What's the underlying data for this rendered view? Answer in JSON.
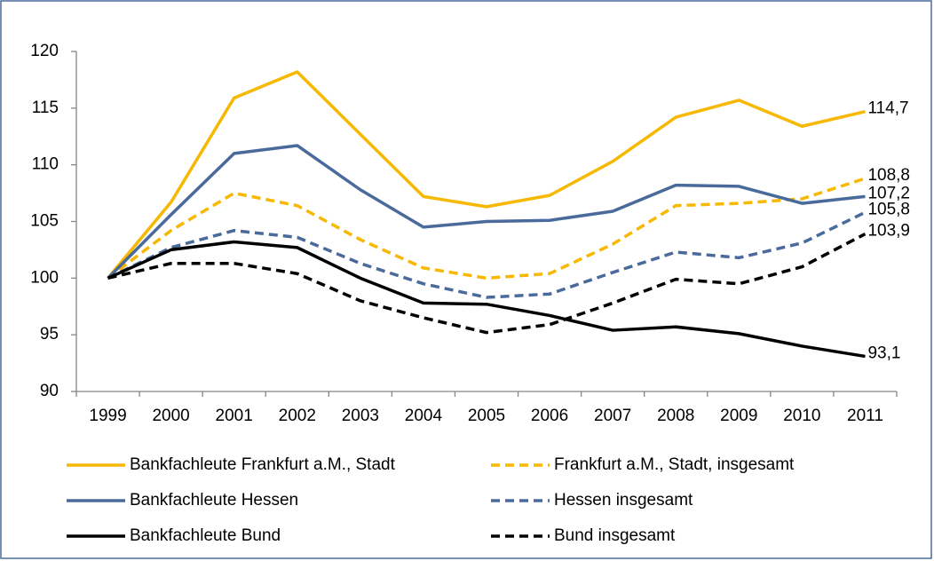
{
  "chart_data": {
    "type": "line",
    "categories": [
      "1999",
      "2000",
      "2001",
      "2002",
      "2003",
      "2004",
      "2005",
      "2006",
      "2007",
      "2008",
      "2009",
      "2010",
      "2011"
    ],
    "ylim": [
      90,
      120
    ],
    "yticks": [
      90,
      95,
      100,
      105,
      110,
      115,
      120
    ],
    "grid": false,
    "series": [
      {
        "name": "Bankfachleute Frankfurt a.M., Stadt",
        "color": "#F6B800",
        "dash": "solid",
        "values": [
          100,
          106.7,
          115.9,
          118.2,
          112.7,
          107.2,
          106.3,
          107.3,
          110.3,
          114.2,
          115.7,
          113.4,
          114.7
        ],
        "value_labels": [
          null,
          null,
          null,
          null,
          null,
          null,
          null,
          null,
          null,
          null,
          null,
          null,
          "114,7"
        ]
      },
      {
        "name": "Frankfurt a.M., Stadt, insgesamt",
        "color": "#F6B800",
        "dash": "dashed",
        "values": [
          100,
          104.2,
          107.5,
          106.4,
          103.4,
          100.9,
          100.0,
          100.4,
          103.0,
          106.4,
          106.6,
          107.0,
          108.8
        ],
        "value_labels": [
          null,
          null,
          null,
          null,
          null,
          null,
          null,
          null,
          null,
          null,
          null,
          null,
          "108,8"
        ]
      },
      {
        "name": "Bankfachleute Hessen",
        "color": "#4A6A9C",
        "dash": "solid",
        "values": [
          100,
          105.6,
          111.0,
          111.7,
          107.8,
          104.5,
          105.0,
          105.1,
          105.9,
          108.2,
          108.1,
          106.6,
          107.2
        ],
        "value_labels": [
          null,
          null,
          null,
          null,
          null,
          null,
          null,
          null,
          null,
          null,
          null,
          null,
          "107,2"
        ]
      },
      {
        "name": "Hessen insgesamt",
        "color": "#4A6A9C",
        "dash": "dashed",
        "values": [
          100,
          102.7,
          104.2,
          103.6,
          101.3,
          99.5,
          98.3,
          98.6,
          100.5,
          102.3,
          101.8,
          103.1,
          105.8
        ],
        "value_labels": [
          null,
          null,
          null,
          null,
          null,
          null,
          null,
          null,
          null,
          null,
          null,
          null,
          "105,8"
        ]
      },
      {
        "name": "Bankfachleute Bund",
        "color": "#000000",
        "dash": "solid",
        "values": [
          100,
          102.5,
          103.2,
          102.7,
          100.0,
          97.8,
          97.7,
          96.7,
          95.4,
          95.7,
          95.1,
          94.0,
          93.1
        ],
        "value_labels": [
          null,
          null,
          null,
          null,
          null,
          null,
          null,
          null,
          null,
          null,
          null,
          null,
          "93,1"
        ]
      },
      {
        "name": "Bund insgesamt",
        "color": "#000000",
        "dash": "dashed",
        "values": [
          100,
          101.3,
          101.3,
          100.4,
          98.0,
          96.5,
          95.2,
          95.9,
          97.8,
          99.9,
          99.5,
          101.0,
          103.9
        ],
        "value_labels": [
          null,
          null,
          null,
          null,
          null,
          null,
          null,
          null,
          null,
          null,
          null,
          null,
          "103,9"
        ]
      }
    ]
  }
}
